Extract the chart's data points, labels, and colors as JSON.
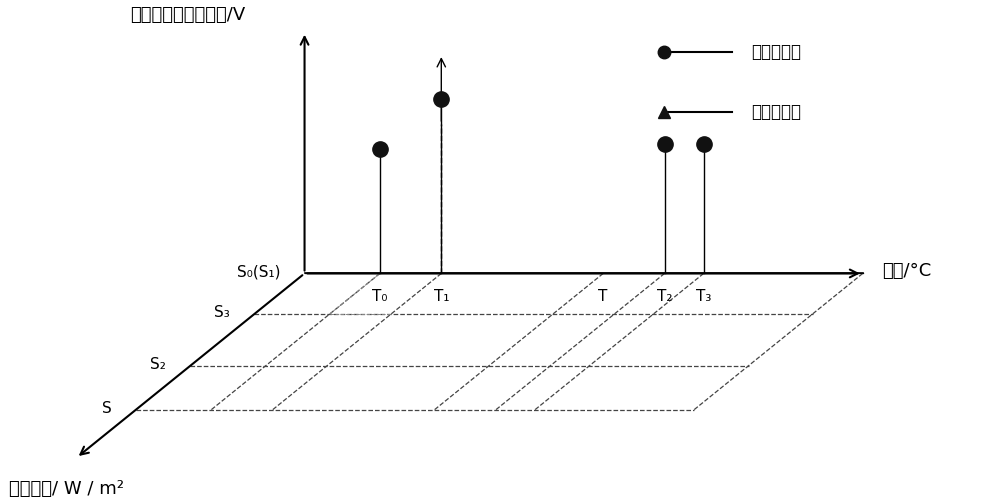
{
  "y_axis_label": "最大功率点对应电压/V",
  "x_axis_label": "温度/°C",
  "z_axis_label": "光照强度/ W / m²",
  "legend_entries": [
    "历史经验点",
    "新环境参数"
  ],
  "temp_labels": [
    "T₀",
    "T₁",
    "T",
    "T₂",
    "T₃"
  ],
  "irr_labels": [
    "S₀(S₁)",
    "S₃",
    "S₂",
    "S"
  ],
  "bg_color": "#ffffff",
  "line_color": "#000000",
  "figsize": [
    10.0,
    5.04
  ],
  "dpi": 100
}
